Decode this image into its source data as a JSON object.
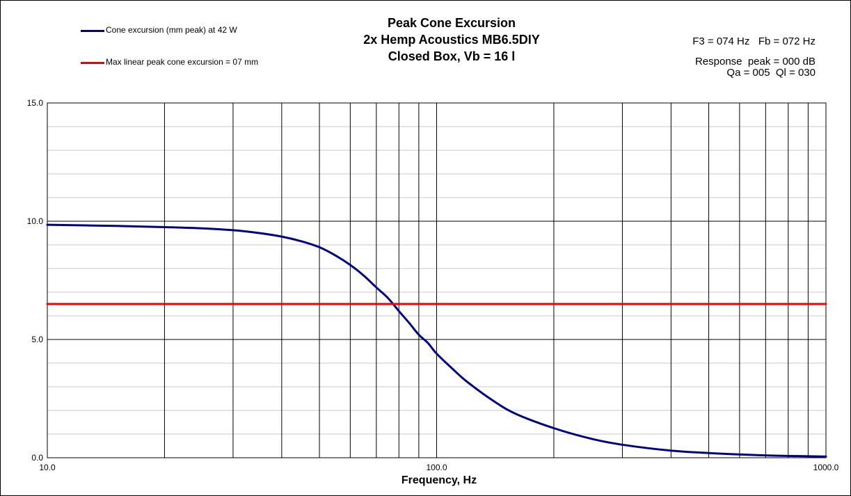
{
  "title": {
    "line1": "Peak Cone Excursion",
    "line2": "2x Hemp Acoustics MB6.5DIY",
    "line3": "Closed Box, Vb = 16 l"
  },
  "legend": [
    {
      "label": "Cone excursion (mm peak) at 42 W",
      "color": "#000080"
    },
    {
      "label": "Max linear peak cone excursion = 07 mm",
      "color": "#ee0000"
    }
  ],
  "info": {
    "f3_fb": "F3 = 074 Hz   Fb = 072 Hz",
    "response_peak": "Response  peak = 000 dB",
    "qa_ql": "Qa = 005  Ql = 030"
  },
  "chart_data": {
    "type": "line",
    "xscale": "log",
    "xlim": [
      10,
      1000
    ],
    "ylim": [
      0,
      15
    ],
    "xlabel": "Frequency, Hz",
    "ylabel": "",
    "x_tick_labels": [
      "10.0",
      "100.0",
      "1000.0"
    ],
    "y_tick_labels": [
      "0.0",
      "5.0",
      "10.0",
      "15.0"
    ],
    "grid": true,
    "legend_position": "top-left",
    "series": [
      {
        "name": "Cone excursion (mm peak) at 42 W",
        "color": "#000080",
        "x": [
          10,
          15,
          20,
          25,
          30,
          35,
          40,
          45,
          50,
          55,
          60,
          65,
          70,
          75,
          80,
          85,
          90,
          95,
          100,
          110,
          120,
          140,
          160,
          200,
          250,
          300,
          400,
          500,
          700,
          1000
        ],
        "y": [
          9.85,
          9.8,
          9.75,
          9.7,
          9.62,
          9.5,
          9.35,
          9.15,
          8.9,
          8.55,
          8.15,
          7.7,
          7.2,
          6.75,
          6.2,
          5.7,
          5.2,
          4.85,
          4.4,
          3.75,
          3.2,
          2.4,
          1.85,
          1.25,
          0.8,
          0.55,
          0.3,
          0.2,
          0.1,
          0.05
        ]
      },
      {
        "name": "Max linear peak cone excursion = 07 mm",
        "color": "#ee0000",
        "x": [
          10,
          1000
        ],
        "y": [
          6.5,
          6.5
        ]
      }
    ]
  }
}
